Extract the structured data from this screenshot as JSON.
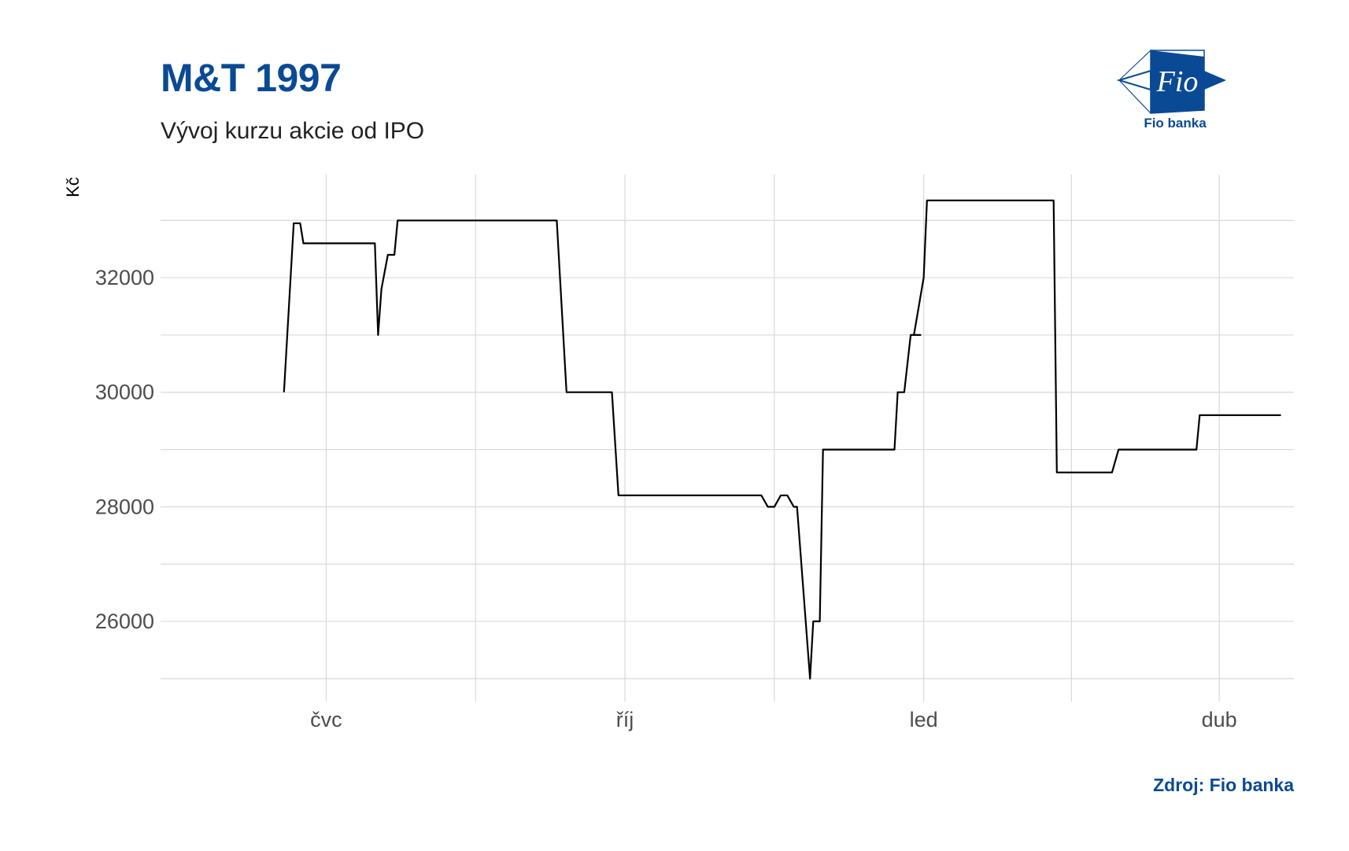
{
  "title": "M&T 1997",
  "subtitle": "Vývoj kurzu akcie od IPO",
  "caption": "Zdroj: Fio banka",
  "logo": {
    "mark_text": "Fio",
    "name": "Fio banka",
    "icon": "fio-bank-logo"
  },
  "colors": {
    "brand": "#0a4a94",
    "line": "#000000",
    "grid": "#d9d9d9",
    "tick_text": "#4d4d4d"
  },
  "chart_data": {
    "type": "line",
    "title": "M&T 1997",
    "subtitle": "Vývoj kurzu akcie od IPO",
    "ylabel": "Kč",
    "xlabel": "",
    "ylim": [
      24600,
      33800
    ],
    "xlim": [
      "2023-05-11",
      "2024-04-24"
    ],
    "grid": true,
    "legend": "none",
    "y_ticks": [
      26000,
      28000,
      30000,
      32000
    ],
    "x_ticks": [
      {
        "date": "2023-07-01",
        "label": "čvc"
      },
      {
        "date": "2023-10-01",
        "label": "říj"
      },
      {
        "date": "2024-01-01",
        "label": "led"
      },
      {
        "date": "2024-04-01",
        "label": "dub"
      }
    ],
    "series": [
      {
        "x": [
          "2023-06-18",
          "2023-06-21",
          "2023-06-23",
          "2023-06-24",
          "2023-07-16",
          "2023-07-17",
          "2023-07-18",
          "2023-07-20",
          "2023-07-21",
          "2023-07-22",
          "2023-07-23",
          "2023-07-24",
          "2023-07-28",
          "2023-07-29",
          "2023-08-01",
          "2023-08-15",
          "2023-09-10",
          "2023-09-13",
          "2023-09-23",
          "2023-09-27",
          "2023-09-29",
          "2023-11-12",
          "2023-11-14",
          "2023-11-16",
          "2023-11-18",
          "2023-11-20",
          "2023-11-22",
          "2023-11-23",
          "2023-11-27",
          "2023-11-28",
          "2023-11-30",
          "2023-12-01",
          "2023-12-03",
          "2023-12-23",
          "2023-12-24",
          "2023-12-26",
          "2023-12-28",
          "2023-12-31",
          "2023-12-29",
          "2024-01-01",
          "2024-01-02",
          "2024-01-04",
          "2024-02-09",
          "2024-02-10",
          "2024-02-11",
          "2024-02-12",
          "2024-02-13",
          "2024-02-28",
          "2024-03-01",
          "2024-03-24",
          "2024-03-25",
          "2024-03-26",
          "2024-04-20"
        ],
        "values": [
          30000,
          32950,
          32950,
          32600,
          32600,
          31000,
          31800,
          32400,
          32400,
          32400,
          33000,
          33000,
          33000,
          33000,
          33000,
          33000,
          33000,
          30000,
          30000,
          30000,
          28200,
          28200,
          28000,
          28000,
          28200,
          28200,
          28000,
          28000,
          25000,
          26000,
          26000,
          29000,
          29000,
          29000,
          30000,
          30000,
          31000,
          31000,
          31000,
          32000,
          33350,
          33350,
          33350,
          33350,
          28600,
          28600,
          28600,
          28600,
          29000,
          29000,
          29000,
          29600,
          29600
        ]
      }
    ]
  }
}
